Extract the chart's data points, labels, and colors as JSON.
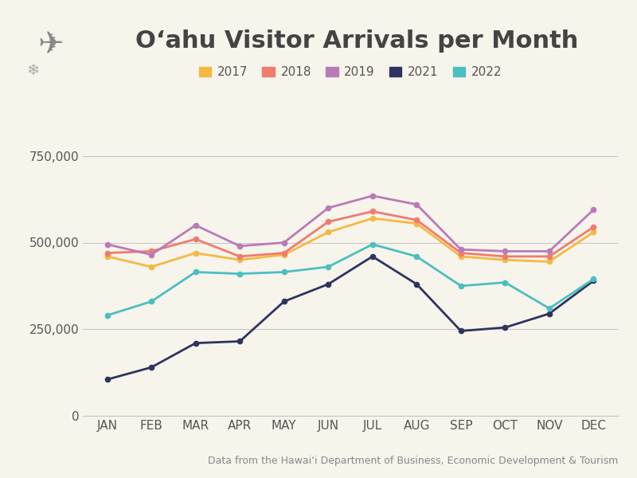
{
  "title": "Oʻahu Visitor Arrivals per Month",
  "subtitle": "Data from the Hawaiʻi Department of Business, Economic Development & Tourism",
  "months": [
    "JAN",
    "FEB",
    "MAR",
    "APR",
    "MAY",
    "JUN",
    "JUL",
    "AUG",
    "SEP",
    "OCT",
    "NOV",
    "DEC"
  ],
  "series": [
    {
      "year": "2017",
      "color": "#F5B942",
      "data": [
        460000,
        430000,
        470000,
        450000,
        465000,
        530000,
        570000,
        555000,
        460000,
        450000,
        445000,
        530000
      ]
    },
    {
      "year": "2018",
      "color": "#F07B6E",
      "data": [
        470000,
        475000,
        510000,
        460000,
        470000,
        560000,
        590000,
        565000,
        470000,
        460000,
        460000,
        545000
      ]
    },
    {
      "year": "2019",
      "color": "#B87BB8",
      "data": [
        495000,
        465000,
        550000,
        490000,
        500000,
        600000,
        635000,
        610000,
        480000,
        475000,
        475000,
        595000
      ]
    },
    {
      "year": "2021",
      "color": "#2E3460",
      "data": [
        105000,
        140000,
        210000,
        215000,
        330000,
        380000,
        460000,
        380000,
        245000,
        255000,
        295000,
        390000
      ]
    },
    {
      "year": "2022",
      "color": "#4BBFBF",
      "data": [
        290000,
        330000,
        415000,
        410000,
        415000,
        430000,
        495000,
        460000,
        375000,
        385000,
        310000,
        395000
      ]
    }
  ],
  "ylim": [
    0,
    800000
  ],
  "yticks": [
    0,
    250000,
    500000,
    750000
  ],
  "background_color": "#F7F4EC",
  "grid_color": "#C8C8C8",
  "title_fontsize": 22,
  "legend_fontsize": 11,
  "tick_fontsize": 11,
  "subtitle_fontsize": 9
}
